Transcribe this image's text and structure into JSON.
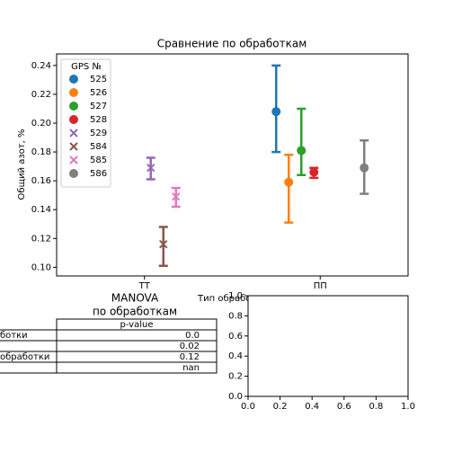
{
  "chart_data": {
    "type": "errorpoint",
    "title": "Сравнение по обработкам",
    "x_label": "Тип обработки",
    "y_label": "Общий азот, %",
    "categories": [
      "ТТ",
      "ПП"
    ],
    "ylim": [
      0.094,
      0.248
    ],
    "yticks": [
      {
        "value": 0.1,
        "label": "0.10"
      },
      0.12,
      0.14,
      0.16,
      0.18,
      {
        "value": 0.2,
        "label": "0.20"
      },
      0.22,
      0.24
    ],
    "legend_title": "GPS №",
    "legend": "upper left",
    "series": [
      {
        "name": "525",
        "color": "#1f77b4",
        "marker": "o",
        "values": [
          null,
          0.208
        ],
        "lower": [
          null,
          0.18
        ],
        "upper": [
          null,
          0.24
        ]
      },
      {
        "name": "526",
        "color": "#ff7f0e",
        "marker": "o",
        "values": [
          null,
          0.159
        ],
        "lower": [
          null,
          0.131
        ],
        "upper": [
          null,
          0.178
        ]
      },
      {
        "name": "527",
        "color": "#2ca02c",
        "marker": "o",
        "values": [
          null,
          0.181
        ],
        "lower": [
          null,
          0.164
        ],
        "upper": [
          null,
          0.21
        ]
      },
      {
        "name": "528",
        "color": "#d62728",
        "marker": "o",
        "values": [
          null,
          0.166
        ],
        "lower": [
          null,
          0.162
        ],
        "upper": [
          null,
          0.169
        ]
      },
      {
        "name": "529",
        "color": "#9467bd",
        "marker": "x",
        "values": [
          0.169,
          null
        ],
        "lower": [
          0.161,
          null
        ],
        "upper": [
          0.176,
          null
        ]
      },
      {
        "name": "584",
        "color": "#8c564b",
        "marker": "x",
        "values": [
          0.116,
          null
        ],
        "lower": [
          0.101,
          null
        ],
        "upper": [
          0.128,
          null
        ]
      },
      {
        "name": "585",
        "color": "#e377c2",
        "marker": "x",
        "values": [
          0.149,
          null
        ],
        "lower": [
          0.142,
          null
        ],
        "upper": [
          0.155,
          null
        ]
      },
      {
        "name": "586",
        "color": "#7f7f7f",
        "marker": "o",
        "values": [
          null,
          0.169
        ],
        "lower": [
          null,
          0.151
        ],
        "upper": [
          null,
          0.188
        ]
      }
    ]
  },
  "table": {
    "title": [
      "MANOVA",
      "по обработкам"
    ],
    "column": "p-value",
    "rows": [
      [
        "ботки",
        "0.0"
      ],
      [
        null,
        "0.02"
      ],
      [
        "обработки",
        "0.12"
      ],
      [
        null,
        "nan"
      ]
    ]
  },
  "empty_axes": {
    "xlim": [
      0,
      1
    ],
    "ylim": [
      0,
      1
    ],
    "xticks": [
      {
        "value": 0,
        "label": "0.0"
      },
      0.2,
      0.4,
      0.6,
      0.8,
      {
        "value": 1,
        "label": "1.0"
      }
    ],
    "yticks": [
      {
        "value": 0,
        "label": "0.0"
      },
      0.2,
      0.4,
      0.6,
      0.8,
      {
        "value": 1,
        "label": "1.0"
      }
    ]
  }
}
